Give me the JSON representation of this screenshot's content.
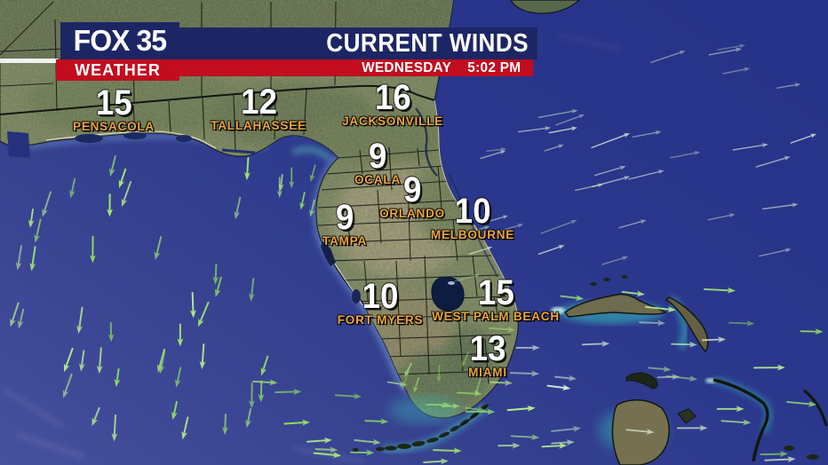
{
  "header": {
    "brand": "FOX 35",
    "brand_sub": "WEATHER",
    "title": "CURRENT WINDS",
    "day": "WEDNESDAY",
    "time": "5:02 PM"
  },
  "stations": [
    {
      "city": "PENSACOLA",
      "wind_mph": 15
    },
    {
      "city": "TALLAHASSEE",
      "wind_mph": 12
    },
    {
      "city": "JACKSONVILLE",
      "wind_mph": 16
    },
    {
      "city": "OCALA",
      "wind_mph": 9
    },
    {
      "city": "ORLANDO",
      "wind_mph": 9
    },
    {
      "city": "TAMPA",
      "wind_mph": 9
    },
    {
      "city": "MELBOURNE",
      "wind_mph": 10
    },
    {
      "city": "FORT MYERS",
      "wind_mph": 10
    },
    {
      "city": "WEST PALM BEACH",
      "wind_mph": 15
    },
    {
      "city": "MIAMI",
      "wind_mph": 13
    }
  ],
  "colors": {
    "brand_navy": "#1d2665",
    "brand_red": "#c20d1f",
    "city_label_orange": "#eda63e",
    "wind_arrow_green": "#8fdc60",
    "ocean_deep": "#2a378c",
    "ocean_gulf": "#434e9e",
    "shallow_cyan": "#4ed2c6"
  }
}
